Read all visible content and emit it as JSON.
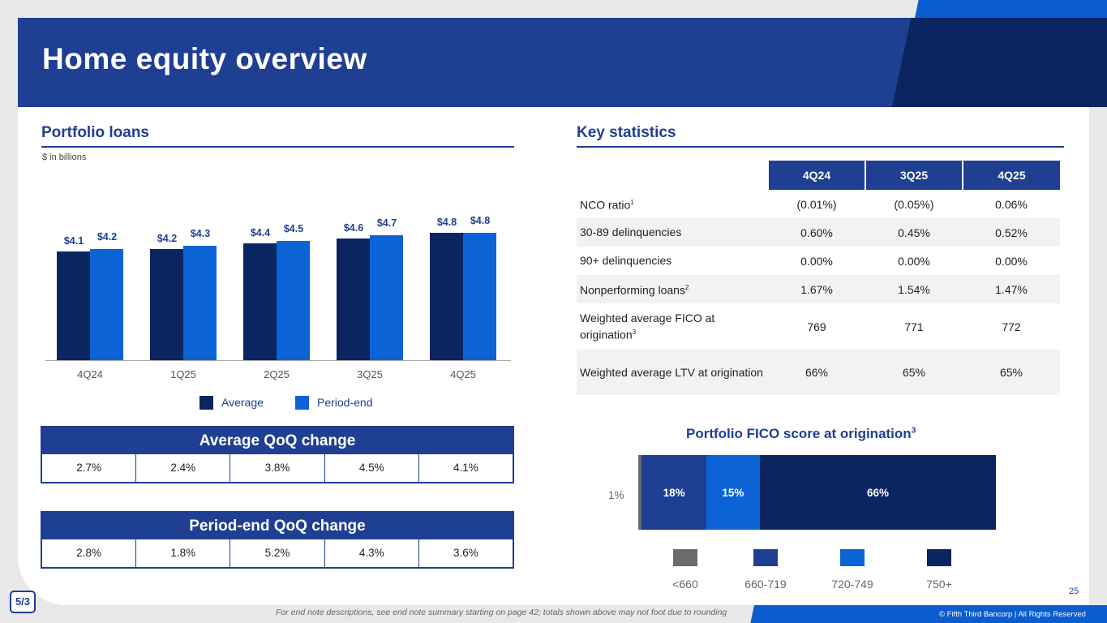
{
  "header": {
    "title": "Home equity overview"
  },
  "portfolio": {
    "title": "Portfolio loans",
    "subtitle": "$ in billions",
    "legend": {
      "average": "Average",
      "period_end": "Period-end"
    }
  },
  "chart_data": {
    "type": "bar",
    "title": "Portfolio loans",
    "ylabel": "$ in billions",
    "categories": [
      "4Q24",
      "1Q25",
      "2Q25",
      "3Q25",
      "4Q25"
    ],
    "series": [
      {
        "name": "Average",
        "values": [
          4.1,
          4.2,
          4.4,
          4.6,
          4.8
        ],
        "labels": [
          "$4.1",
          "$4.2",
          "$4.4",
          "$4.6",
          "$4.8"
        ],
        "color": "#0b2560"
      },
      {
        "name": "Period-end",
        "values": [
          4.2,
          4.3,
          4.5,
          4.7,
          4.8
        ],
        "labels": [
          "$4.2",
          "$4.3",
          "$4.5",
          "$4.7",
          "$4.8"
        ],
        "color": "#0b63d6"
      }
    ]
  },
  "avg_qoq": {
    "title": "Average QoQ change",
    "values": [
      "2.7%",
      "2.4%",
      "3.8%",
      "4.5%",
      "4.1%"
    ]
  },
  "pe_qoq": {
    "title": "Period-end QoQ change",
    "values": [
      "2.8%",
      "1.8%",
      "5.2%",
      "4.3%",
      "3.6%"
    ]
  },
  "stats": {
    "title": "Key statistics",
    "columns": [
      "4Q24",
      "3Q25",
      "4Q25"
    ],
    "rows": [
      {
        "label": "NCO ratio",
        "sup": "1",
        "values": [
          "(0.01%)",
          "(0.05%)",
          "0.06%"
        ]
      },
      {
        "label": "30-89 delinquencies",
        "sup": "",
        "values": [
          "0.60%",
          "0.45%",
          "0.52%"
        ]
      },
      {
        "label": "90+ delinquencies",
        "sup": "",
        "values": [
          "0.00%",
          "0.00%",
          "0.00%"
        ]
      },
      {
        "label": "Nonperforming loans",
        "sup": "2",
        "values": [
          "1.67%",
          "1.54%",
          "1.47%"
        ]
      },
      {
        "label": "Weighted average FICO at origination",
        "sup": "3",
        "values": [
          "769",
          "771",
          "772"
        ]
      },
      {
        "label": "Weighted average LTV at origination",
        "sup": "",
        "values": [
          "66%",
          "65%",
          "65%"
        ]
      }
    ]
  },
  "fico": {
    "title": "Portfolio FICO score at origination",
    "sup": "3",
    "segments": [
      {
        "label": "<660",
        "value": 1,
        "text": "1%",
        "color": "#6b6b6b"
      },
      {
        "label": "660-719",
        "value": 18,
        "text": "18%",
        "color": "#1f3f93"
      },
      {
        "label": "720-749",
        "value": 15,
        "text": "15%",
        "color": "#0b63d6"
      },
      {
        "label": "750+",
        "value": 66,
        "text": "66%",
        "color": "#0b2560"
      }
    ]
  },
  "footer": {
    "note": "For end note descriptions, see end note summary starting on page 42; totals shown above may not foot due to rounding",
    "copyright": "© Fifth Third Bancorp | All Rights Reserved",
    "page": "25",
    "logo": "5/3"
  }
}
